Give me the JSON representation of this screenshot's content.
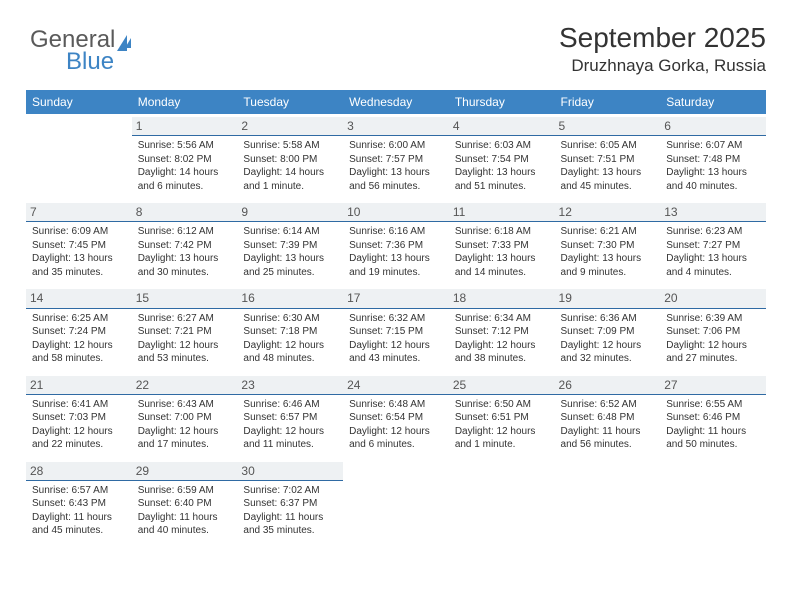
{
  "logo": {
    "line1": "General",
    "line2": "Blue"
  },
  "title": "September 2025",
  "subtitle": "Druzhnaya Gorka, Russia",
  "header_bg": "#3d84c4",
  "daynum_bg": "#eef1f3",
  "daynum_border": "#2f6aa3",
  "days": [
    "Sunday",
    "Monday",
    "Tuesday",
    "Wednesday",
    "Thursday",
    "Friday",
    "Saturday"
  ],
  "weeks": [
    [
      {
        "n": "",
        "lines": []
      },
      {
        "n": "1",
        "lines": [
          "Sunrise: 5:56 AM",
          "Sunset: 8:02 PM",
          "Daylight: 14 hours and 6 minutes."
        ]
      },
      {
        "n": "2",
        "lines": [
          "Sunrise: 5:58 AM",
          "Sunset: 8:00 PM",
          "Daylight: 14 hours and 1 minute."
        ]
      },
      {
        "n": "3",
        "lines": [
          "Sunrise: 6:00 AM",
          "Sunset: 7:57 PM",
          "Daylight: 13 hours and 56 minutes."
        ]
      },
      {
        "n": "4",
        "lines": [
          "Sunrise: 6:03 AM",
          "Sunset: 7:54 PM",
          "Daylight: 13 hours and 51 minutes."
        ]
      },
      {
        "n": "5",
        "lines": [
          "Sunrise: 6:05 AM",
          "Sunset: 7:51 PM",
          "Daylight: 13 hours and 45 minutes."
        ]
      },
      {
        "n": "6",
        "lines": [
          "Sunrise: 6:07 AM",
          "Sunset: 7:48 PM",
          "Daylight: 13 hours and 40 minutes."
        ]
      }
    ],
    [
      {
        "n": "7",
        "lines": [
          "Sunrise: 6:09 AM",
          "Sunset: 7:45 PM",
          "Daylight: 13 hours and 35 minutes."
        ]
      },
      {
        "n": "8",
        "lines": [
          "Sunrise: 6:12 AM",
          "Sunset: 7:42 PM",
          "Daylight: 13 hours and 30 minutes."
        ]
      },
      {
        "n": "9",
        "lines": [
          "Sunrise: 6:14 AM",
          "Sunset: 7:39 PM",
          "Daylight: 13 hours and 25 minutes."
        ]
      },
      {
        "n": "10",
        "lines": [
          "Sunrise: 6:16 AM",
          "Sunset: 7:36 PM",
          "Daylight: 13 hours and 19 minutes."
        ]
      },
      {
        "n": "11",
        "lines": [
          "Sunrise: 6:18 AM",
          "Sunset: 7:33 PM",
          "Daylight: 13 hours and 14 minutes."
        ]
      },
      {
        "n": "12",
        "lines": [
          "Sunrise: 6:21 AM",
          "Sunset: 7:30 PM",
          "Daylight: 13 hours and 9 minutes."
        ]
      },
      {
        "n": "13",
        "lines": [
          "Sunrise: 6:23 AM",
          "Sunset: 7:27 PM",
          "Daylight: 13 hours and 4 minutes."
        ]
      }
    ],
    [
      {
        "n": "14",
        "lines": [
          "Sunrise: 6:25 AM",
          "Sunset: 7:24 PM",
          "Daylight: 12 hours and 58 minutes."
        ]
      },
      {
        "n": "15",
        "lines": [
          "Sunrise: 6:27 AM",
          "Sunset: 7:21 PM",
          "Daylight: 12 hours and 53 minutes."
        ]
      },
      {
        "n": "16",
        "lines": [
          "Sunrise: 6:30 AM",
          "Sunset: 7:18 PM",
          "Daylight: 12 hours and 48 minutes."
        ]
      },
      {
        "n": "17",
        "lines": [
          "Sunrise: 6:32 AM",
          "Sunset: 7:15 PM",
          "Daylight: 12 hours and 43 minutes."
        ]
      },
      {
        "n": "18",
        "lines": [
          "Sunrise: 6:34 AM",
          "Sunset: 7:12 PM",
          "Daylight: 12 hours and 38 minutes."
        ]
      },
      {
        "n": "19",
        "lines": [
          "Sunrise: 6:36 AM",
          "Sunset: 7:09 PM",
          "Daylight: 12 hours and 32 minutes."
        ]
      },
      {
        "n": "20",
        "lines": [
          "Sunrise: 6:39 AM",
          "Sunset: 7:06 PM",
          "Daylight: 12 hours and 27 minutes."
        ]
      }
    ],
    [
      {
        "n": "21",
        "lines": [
          "Sunrise: 6:41 AM",
          "Sunset: 7:03 PM",
          "Daylight: 12 hours and 22 minutes."
        ]
      },
      {
        "n": "22",
        "lines": [
          "Sunrise: 6:43 AM",
          "Sunset: 7:00 PM",
          "Daylight: 12 hours and 17 minutes."
        ]
      },
      {
        "n": "23",
        "lines": [
          "Sunrise: 6:46 AM",
          "Sunset: 6:57 PM",
          "Daylight: 12 hours and 11 minutes."
        ]
      },
      {
        "n": "24",
        "lines": [
          "Sunrise: 6:48 AM",
          "Sunset: 6:54 PM",
          "Daylight: 12 hours and 6 minutes."
        ]
      },
      {
        "n": "25",
        "lines": [
          "Sunrise: 6:50 AM",
          "Sunset: 6:51 PM",
          "Daylight: 12 hours and 1 minute."
        ]
      },
      {
        "n": "26",
        "lines": [
          "Sunrise: 6:52 AM",
          "Sunset: 6:48 PM",
          "Daylight: 11 hours and 56 minutes."
        ]
      },
      {
        "n": "27",
        "lines": [
          "Sunrise: 6:55 AM",
          "Sunset: 6:46 PM",
          "Daylight: 11 hours and 50 minutes."
        ]
      }
    ],
    [
      {
        "n": "28",
        "lines": [
          "Sunrise: 6:57 AM",
          "Sunset: 6:43 PM",
          "Daylight: 11 hours and 45 minutes."
        ]
      },
      {
        "n": "29",
        "lines": [
          "Sunrise: 6:59 AM",
          "Sunset: 6:40 PM",
          "Daylight: 11 hours and 40 minutes."
        ]
      },
      {
        "n": "30",
        "lines": [
          "Sunrise: 7:02 AM",
          "Sunset: 6:37 PM",
          "Daylight: 11 hours and 35 minutes."
        ]
      },
      {
        "n": "",
        "lines": []
      },
      {
        "n": "",
        "lines": []
      },
      {
        "n": "",
        "lines": []
      },
      {
        "n": "",
        "lines": []
      }
    ]
  ]
}
